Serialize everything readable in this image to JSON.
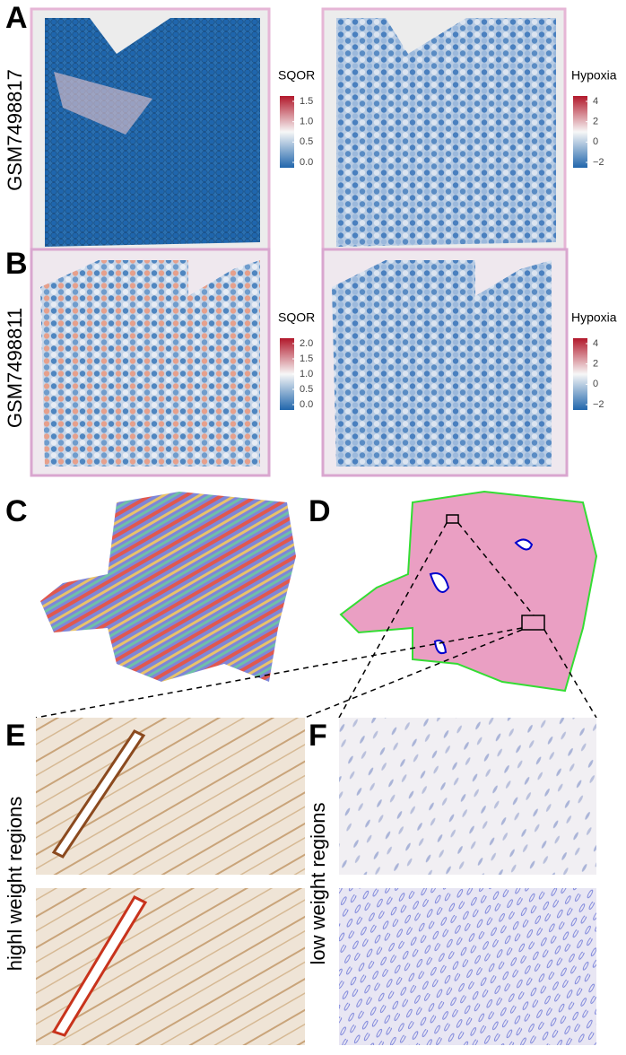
{
  "panels": {
    "A": {
      "letter": "A",
      "sample": "GSM7498817",
      "legends": [
        {
          "title": "SQOR",
          "ticks": [
            "1.5",
            "1.0",
            "0.5",
            "0.0"
          ]
        },
        {
          "title": "Hypoxia",
          "ticks": [
            "4",
            "2",
            "0",
            "−2"
          ]
        }
      ]
    },
    "B": {
      "letter": "B",
      "sample": "GSM7498811",
      "legends": [
        {
          "title": "SQOR",
          "ticks": [
            "2.0",
            "1.5",
            "1.0",
            "0.5",
            "0.0"
          ]
        },
        {
          "title": "Hypoxia",
          "ticks": [
            "4",
            "2",
            "0",
            "−2"
          ]
        }
      ]
    },
    "C": {
      "letter": "C"
    },
    "D": {
      "letter": "D"
    },
    "E": {
      "letter": "E",
      "label": "highl weight regions"
    },
    "F": {
      "letter": "F",
      "label": "low weight regions"
    }
  }
}
